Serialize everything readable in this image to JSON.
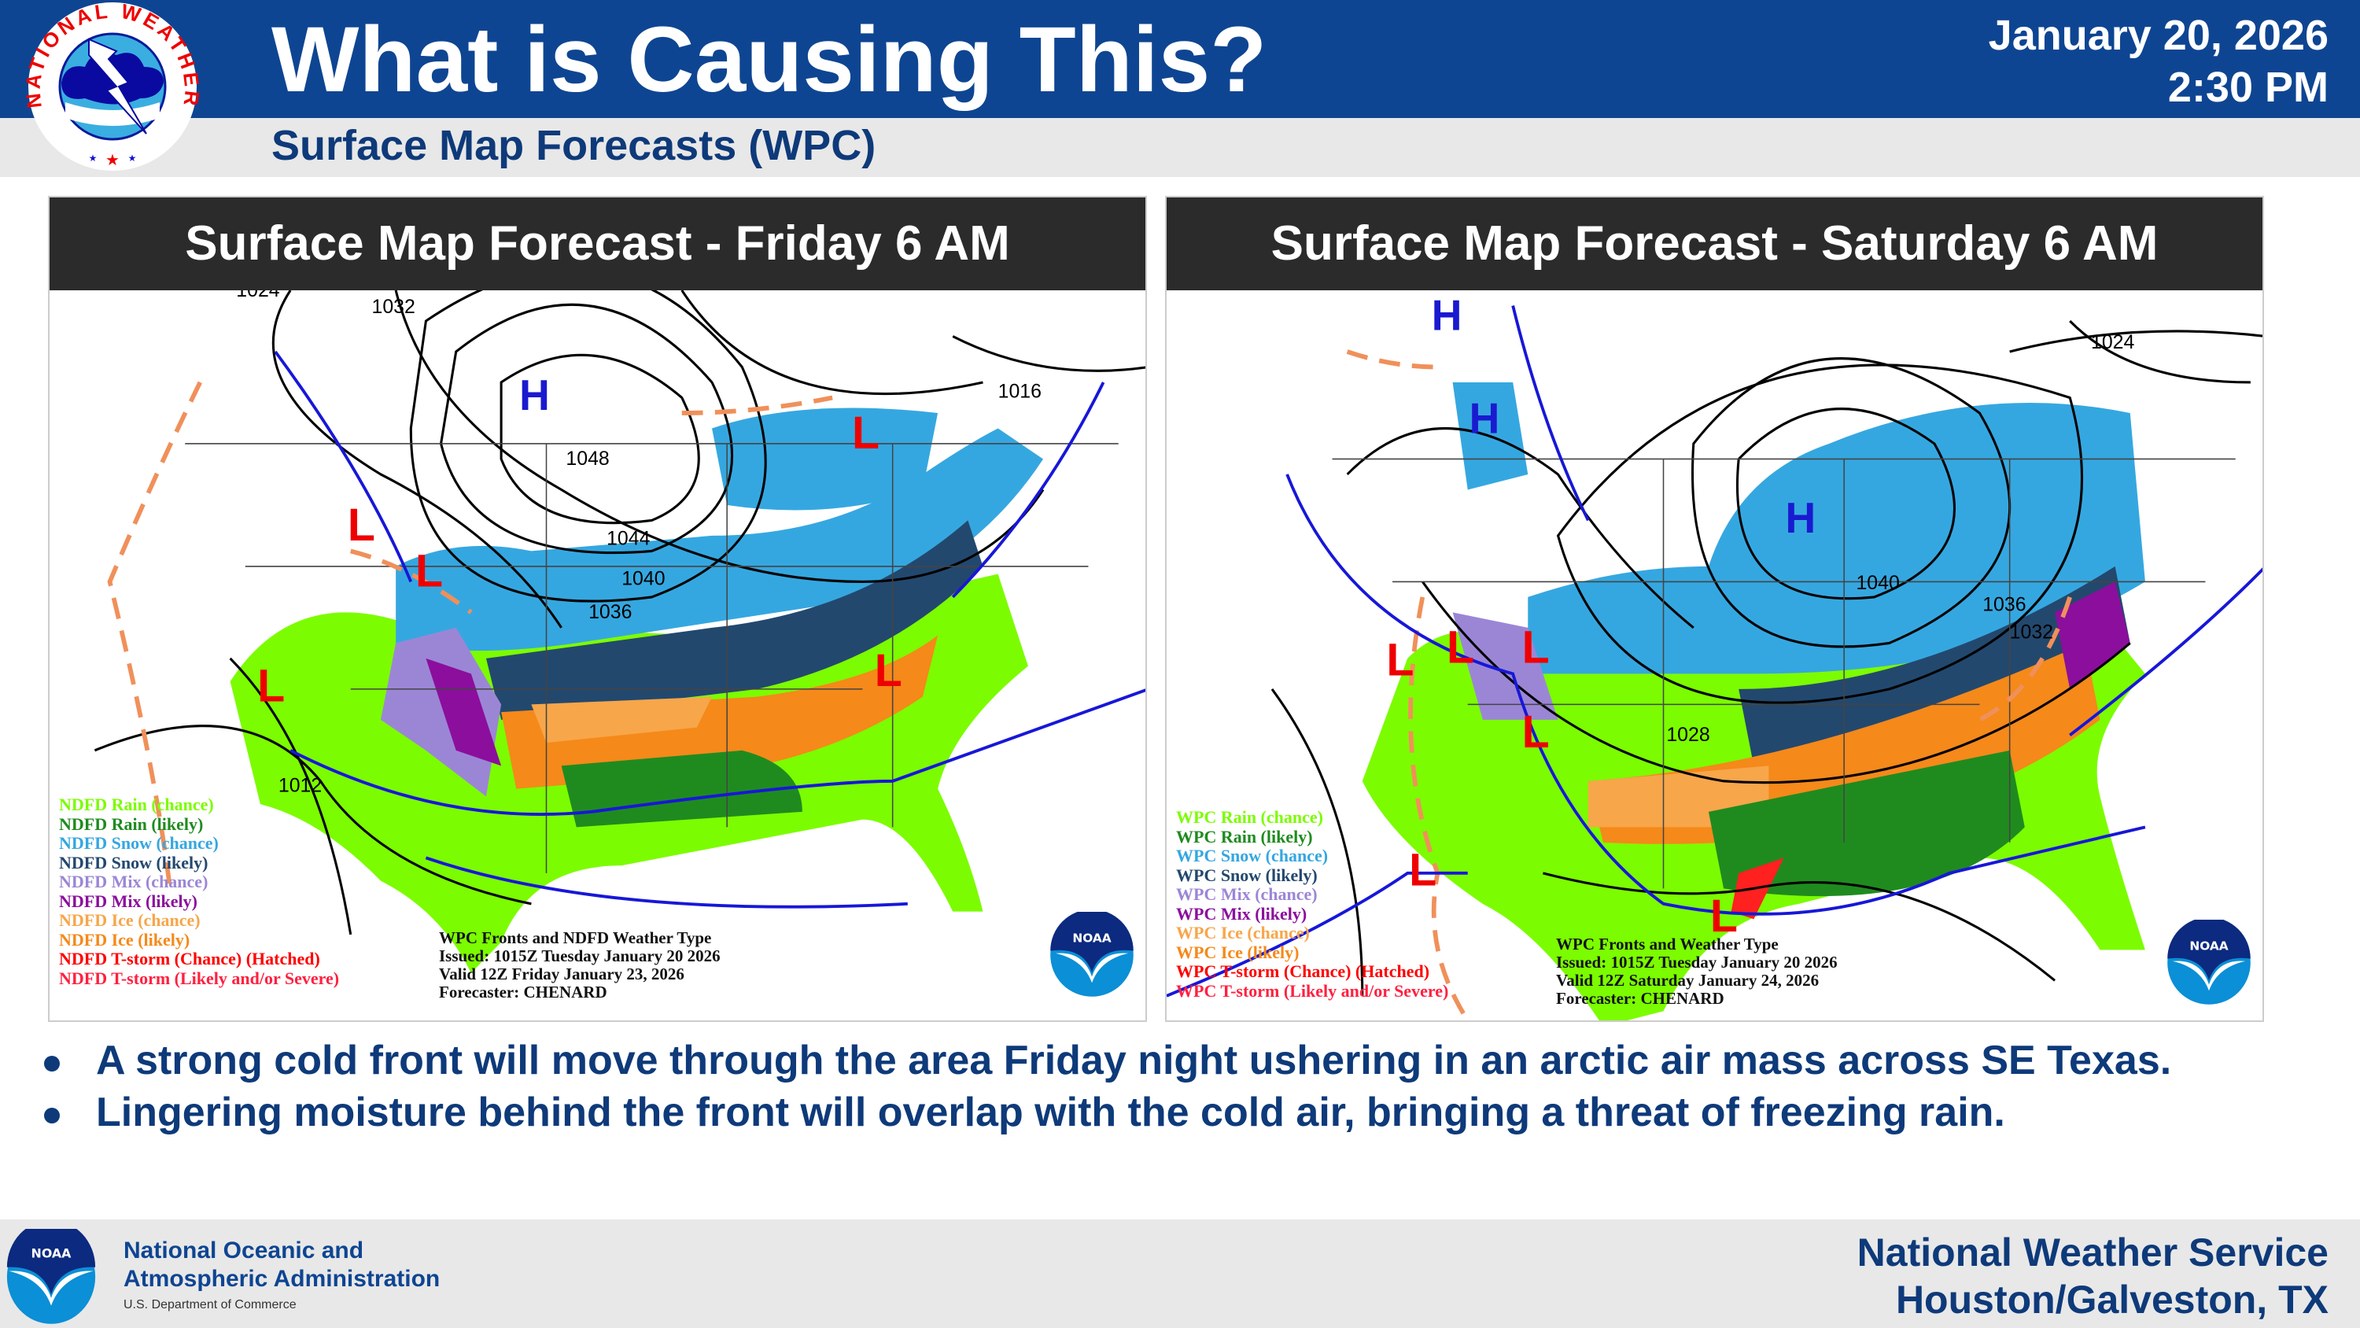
{
  "header": {
    "title": "What is Causing This?",
    "subtitle": "Surface Map Forecasts (WPC)",
    "date": "January 20, 2026",
    "time": "2:30 PM",
    "logo_text": "NATIONAL WEATHER SERVICE"
  },
  "colors": {
    "header_bg": "#0e4592",
    "rain_chance": "#7cfc00",
    "rain_likely": "#1f8b1f",
    "snow_chance": "#35a7e0",
    "snow_likely": "#23486e",
    "mix_chance": "#9b86d6",
    "mix_likely": "#8b0f9c",
    "ice_chance": "#f7a64a",
    "ice_likely": "#f5891a",
    "tstorm": "#ff0000"
  },
  "panels": [
    {
      "title": "Surface Map Forecast - Friday 6 AM",
      "legend": [
        "NDFD Rain (chance)",
        "NDFD Rain (likely)",
        "NDFD Snow (chance)",
        "NDFD Snow (likely)",
        "NDFD Mix (chance)",
        "NDFD Mix (likely)",
        "NDFD Ice (chance)",
        "NDFD Ice (likely)",
        "NDFD T-storm (Chance) (Hatched)",
        "NDFD T-storm (Likely and/or Severe)"
      ],
      "info": [
        "WPC Fronts and NDFD Weather Type",
        "Issued: 1015Z Tuesday January 20 2026",
        "Valid 12Z Friday January 23, 2026",
        "Forecaster: CHENARD"
      ],
      "isobars": [
        "1024",
        "1032",
        "1016",
        "1048",
        "1044",
        "1040",
        "1036",
        "1012"
      ],
      "highs": [
        "H"
      ],
      "lows": [
        "L",
        "L",
        "L",
        "L",
        "L"
      ]
    },
    {
      "title": "Surface Map Forecast - Saturday 6 AM",
      "legend": [
        "WPC Rain (chance)",
        "WPC Rain (likely)",
        "WPC Snow (chance)",
        "WPC Snow (likely)",
        "WPC Mix (chance)",
        "WPC Mix (likely)",
        "WPC Ice (chance)",
        "WPC Ice (likely)",
        "WPC T-storm (Chance) (Hatched)",
        "WPC T-storm (Likely and/or Severe)"
      ],
      "info": [
        "WPC Fronts and Weather Type",
        "Issued: 1015Z Tuesday January 20 2026",
        "Valid 12Z Saturday January 24, 2026",
        "Forecaster: CHENARD"
      ],
      "isobars": [
        "1024",
        "1040",
        "1036",
        "1032",
        "1028"
      ],
      "highs": [
        "H",
        "H",
        "H"
      ],
      "lows": [
        "L",
        "L",
        "L",
        "L",
        "L",
        "L"
      ]
    }
  ],
  "bullets": [
    "A strong cold front will move through the area Friday night ushering in an arctic air mass across SE Texas.",
    "Lingering moisture behind the front will overlap with the cold air, bringing a threat of freezing rain."
  ],
  "footer": {
    "org_line1": "National Oceanic and",
    "org_line2": "Atmospheric Administration",
    "dept": "U.S. Department of Commerce",
    "office_line1": "National Weather Service",
    "office_line2": "Houston/Galveston, TX",
    "noaa_logo_text": "NOAA"
  }
}
